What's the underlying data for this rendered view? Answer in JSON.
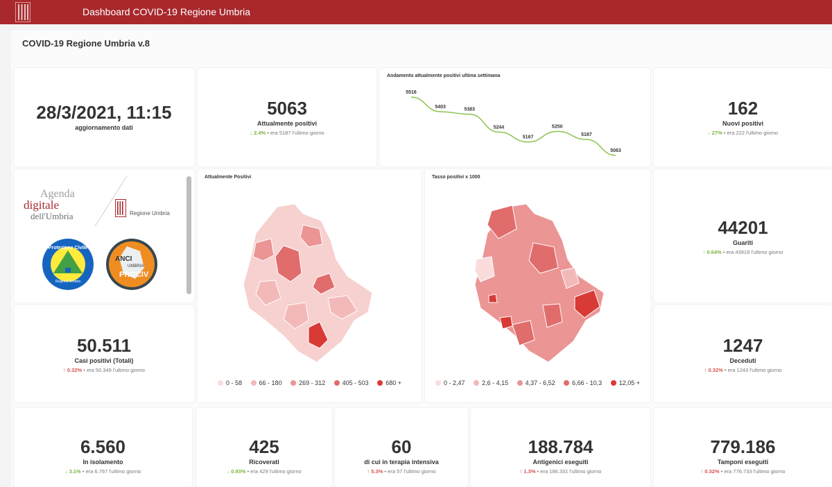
{
  "app": {
    "title": "Dashboard COVID-19 Regione Umbria"
  },
  "report": {
    "title": "COVID-19 Regione Umbria v.8"
  },
  "update": {
    "datetime": "28/3/2021, 11:15",
    "label": "aggiornamento dati"
  },
  "kpis": {
    "attualmente_positivi": {
      "value": "5063",
      "label": "Attualmente positivi",
      "pct": "2.4%",
      "prev": "era 5187 l'ultimo giorno",
      "direction": "down"
    },
    "nuovi_positivi": {
      "value": "162",
      "label": "Nuovi positivi",
      "pct": "27%",
      "prev": "era 222 l'ultimo giorno",
      "direction": "down"
    },
    "guariti": {
      "value": "44201",
      "label": "Guariti",
      "pct": "0.64%",
      "prev": "era 43919 l'ultimo giorno",
      "direction": "up"
    },
    "casi_totali": {
      "value": "50.511",
      "label": "Casi positivi (Totali)",
      "pct": "0.32%",
      "prev": "era 50.349 l'ultimo giorno",
      "direction": "up"
    },
    "deceduti": {
      "value": "1247",
      "label": "Deceduti",
      "pct": "0.32%",
      "prev": "era 1243 l'ultimo giorno",
      "direction": "up"
    },
    "isolamento": {
      "value": "6.560",
      "label": "In isolamento",
      "pct": "3.1%",
      "prev": "era 6.767 l'ultimo giorno",
      "direction": "down"
    },
    "ricoverati": {
      "value": "425",
      "label": "Ricoverati",
      "pct": "0.93%",
      "prev": "era 429 l'ultimo giorno",
      "direction": "down"
    },
    "terapia_intensiva": {
      "value": "60",
      "label": "di cui in terapia intensiva",
      "pct": "5.3%",
      "prev": "era 57 l'ultimo giorno",
      "direction": "up"
    },
    "antigenici": {
      "value": "188.784",
      "label": "Antigenici eseguiti",
      "pct": "1.3%",
      "prev": "era 186.331 l'ultimo giorno",
      "direction": "up"
    },
    "tamponi": {
      "value": "779.186",
      "label": "Tamponi eseguiti",
      "pct": "0.32%",
      "prev": "era 776.733 l'ultimo giorno",
      "direction": "up"
    }
  },
  "trend_chart": {
    "title": "Andamento attualmente positivi ultima settimana",
    "values": [
      5516,
      5403,
      5383,
      5244,
      5167,
      5250,
      5187,
      5063
    ],
    "line_color": "#8bc34a"
  },
  "logos": {
    "agenda_line1": "Agenda",
    "agenda_line2": "digitale",
    "agenda_line3": "dell'Umbria",
    "regione": "Regione Umbria",
    "protezione_text": "Protezione Civile",
    "protezione_sub": "Regione Umbria",
    "anci_line1": "ANCI",
    "anci_line2": "UMBRIA",
    "anci_line3": "PROCIV"
  },
  "map_positivi": {
    "title": "Attualmente Positivi",
    "legend": [
      {
        "label": "0 - 58",
        "color": "#fadcdc"
      },
      {
        "label": "66 - 180",
        "color": "#f3b9b9"
      },
      {
        "label": "269 - 312",
        "color": "#eb9595"
      },
      {
        "label": "405 - 503",
        "color": "#e06c6c"
      },
      {
        "label": "680 +",
        "color": "#d83a36"
      }
    ]
  },
  "map_tasso": {
    "title": "Tasso positivi x 1000",
    "legend": [
      {
        "label": "0 - 2,47",
        "color": "#fadcdc"
      },
      {
        "label": "2,6 - 4,15",
        "color": "#f3b9b9"
      },
      {
        "label": "4,37 - 6,52",
        "color": "#eb9595"
      },
      {
        "label": "6,66 - 10,3",
        "color": "#e06c6c"
      },
      {
        "label": "12,05 +",
        "color": "#d83a36"
      }
    ]
  },
  "colors": {
    "header": "#a8282c",
    "accent_up": "#d9534f",
    "accent_down": "#7cb342"
  }
}
